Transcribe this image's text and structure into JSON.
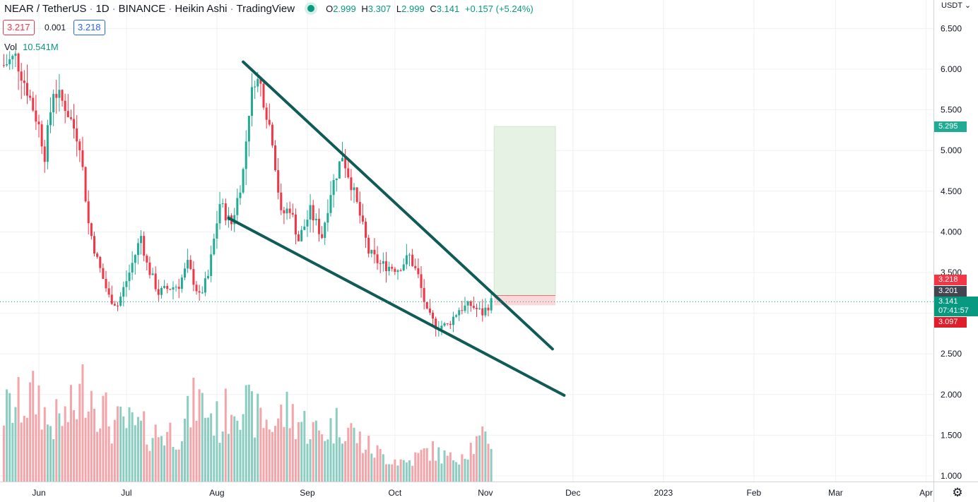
{
  "header": {
    "symbol": "NEAR / TetherUS",
    "interval": "1D",
    "exchange": "BINANCE",
    "chart_style": "Heikin Ashi",
    "source": "TradingView",
    "status_color": "#089981",
    "ohlc": {
      "o_key": "O",
      "o_val": "2.999",
      "h_key": "H",
      "h_val": "3.307",
      "l_key": "L",
      "l_val": "2.999",
      "c_key": "C",
      "c_val": "3.141",
      "change": "+0.157 (+5.24%)"
    }
  },
  "quote": {
    "sell": "3.217",
    "spread": "0.001",
    "buy": "3.218"
  },
  "volume": {
    "label": "Vol",
    "value": "10.541M"
  },
  "price_axis": {
    "unit": "USDT",
    "unit_icon": "chevron-down-icon",
    "ticks": [
      "6.500",
      "6.000",
      "5.500",
      "5.000",
      "4.500",
      "4.000",
      "3.500",
      "3.000",
      "2.500",
      "2.000",
      "1.500",
      "1.000"
    ],
    "labels": {
      "target": "5.295",
      "entry_high": "3.218",
      "line_value": "3.201",
      "current": "3.141",
      "countdown": "07:41:57",
      "stop": "3.097"
    }
  },
  "time_axis": {
    "ticks": [
      "Jun",
      "Jul",
      "Aug",
      "Sep",
      "Oct",
      "Nov",
      "Dec",
      "2023",
      "Feb",
      "Mar",
      "Apr"
    ]
  },
  "settings_icon": "gear-icon",
  "colors": {
    "up": "#22ab94",
    "down": "#f23645",
    "vol_up": "#8ccdc2",
    "vol_down": "#f4a5a9",
    "trendline": "#0f5b56",
    "target_zone": "#e6f3e4",
    "stop_zone": "#fbd9da"
  },
  "chart_data": {
    "type": "candlestick",
    "style": "Heikin Ashi",
    "interval": "1D",
    "x_range": [
      "2022-05-20",
      "2023-04-01"
    ],
    "y_range": [
      1.0,
      6.6
    ],
    "grid": true,
    "volume_pane": true,
    "last_candle_date": "2022-11-03",
    "trendlines": [
      {
        "points": [
          [
            "2022-08-10",
            6.09
          ],
          [
            "2022-11-24",
            2.56
          ]
        ]
      },
      {
        "points": [
          [
            "2022-08-05",
            4.17
          ],
          [
            "2022-11-28",
            1.99
          ]
        ]
      }
    ],
    "position": {
      "start": "2022-11-04",
      "end": "2022-11-25",
      "entry": 3.218,
      "target": 5.295,
      "stop": 3.097
    },
    "anchors": [
      [
        "2022-05-20",
        6.05
      ],
      [
        "2022-05-24",
        6.15
      ],
      [
        "2022-05-28",
        5.75
      ],
      [
        "2022-06-01",
        5.3
      ],
      [
        "2022-06-03",
        4.95
      ],
      [
        "2022-06-06",
        5.75
      ],
      [
        "2022-06-10",
        5.55
      ],
      [
        "2022-06-15",
        5.1
      ],
      [
        "2022-06-18",
        4.1
      ],
      [
        "2022-06-21",
        3.65
      ],
      [
        "2022-06-25",
        3.2
      ],
      [
        "2022-06-28",
        3.1
      ],
      [
        "2022-07-02",
        3.5
      ],
      [
        "2022-07-06",
        3.95
      ],
      [
        "2022-07-08",
        3.6
      ],
      [
        "2022-07-12",
        3.25
      ],
      [
        "2022-07-15",
        3.3
      ],
      [
        "2022-07-19",
        3.35
      ],
      [
        "2022-07-22",
        3.6
      ],
      [
        "2022-07-26",
        3.2
      ],
      [
        "2022-07-29",
        3.45
      ],
      [
        "2022-08-02",
        4.35
      ],
      [
        "2022-08-05",
        4.15
      ],
      [
        "2022-08-06",
        4.1
      ],
      [
        "2022-08-08",
        4.4
      ],
      [
        "2022-08-10",
        4.75
      ],
      [
        "2022-08-12",
        5.5
      ],
      [
        "2022-08-14",
        5.9
      ],
      [
        "2022-08-16",
        5.8
      ],
      [
        "2022-08-20",
        5.15
      ],
      [
        "2022-08-23",
        4.2
      ],
      [
        "2022-08-26",
        4.3
      ],
      [
        "2022-08-29",
        3.9
      ],
      [
        "2022-09-02",
        4.25
      ],
      [
        "2022-09-06",
        3.95
      ],
      [
        "2022-09-09",
        4.5
      ],
      [
        "2022-09-13",
        4.95
      ],
      [
        "2022-09-16",
        4.6
      ],
      [
        "2022-09-19",
        4.2
      ],
      [
        "2022-09-22",
        3.75
      ],
      [
        "2022-09-26",
        3.6
      ],
      [
        "2022-10-02",
        3.55
      ],
      [
        "2022-10-06",
        3.7
      ],
      [
        "2022-10-09",
        3.45
      ],
      [
        "2022-10-12",
        3.0
      ],
      [
        "2022-10-15",
        2.85
      ],
      [
        "2022-10-19",
        2.85
      ],
      [
        "2022-10-23",
        3.05
      ],
      [
        "2022-10-27",
        3.1
      ],
      [
        "2022-10-31",
        3.0
      ],
      [
        "2022-11-03",
        3.14
      ]
    ],
    "volume_anchors": [
      [
        "2022-05-20",
        110
      ],
      [
        "2022-06-01",
        135
      ],
      [
        "2022-06-04",
        90
      ],
      [
        "2022-06-10",
        100
      ],
      [
        "2022-06-14",
        120
      ],
      [
        "2022-06-17",
        160
      ],
      [
        "2022-06-22",
        120
      ],
      [
        "2022-06-26",
        90
      ],
      [
        "2022-07-01",
        90
      ],
      [
        "2022-07-10",
        75
      ],
      [
        "2022-07-20",
        80
      ],
      [
        "2022-07-25",
        130
      ],
      [
        "2022-08-02",
        90
      ],
      [
        "2022-08-08",
        140
      ],
      [
        "2022-08-12",
        110
      ],
      [
        "2022-08-20",
        90
      ],
      [
        "2022-08-25",
        110
      ],
      [
        "2022-09-05",
        75
      ],
      [
        "2022-09-13",
        95
      ],
      [
        "2022-09-20",
        60
      ],
      [
        "2022-09-27",
        40
      ],
      [
        "2022-10-05",
        30
      ],
      [
        "2022-10-13",
        50
      ],
      [
        "2022-10-20",
        35
      ],
      [
        "2022-10-27",
        55
      ],
      [
        "2022-11-03",
        70
      ]
    ]
  }
}
